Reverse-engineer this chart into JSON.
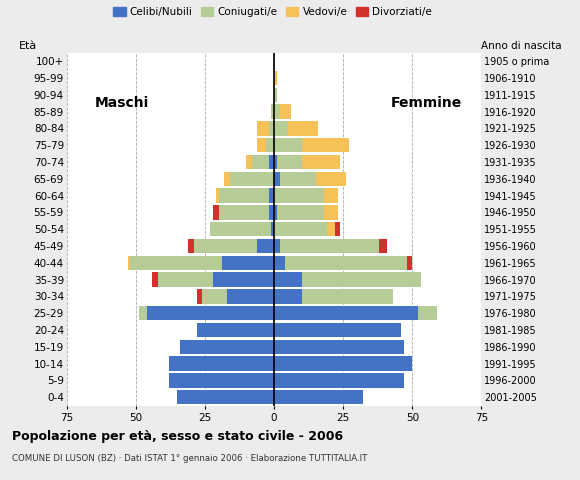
{
  "age_groups": [
    "0-4",
    "5-9",
    "10-14",
    "15-19",
    "20-24",
    "25-29",
    "30-34",
    "35-39",
    "40-44",
    "45-49",
    "50-54",
    "55-59",
    "60-64",
    "65-69",
    "70-74",
    "75-79",
    "80-84",
    "85-89",
    "90-94",
    "95-99",
    "100+"
  ],
  "birth_years": [
    "2001-2005",
    "1996-2000",
    "1991-1995",
    "1986-1990",
    "1981-1985",
    "1976-1980",
    "1971-1975",
    "1966-1970",
    "1961-1965",
    "1956-1960",
    "1951-1955",
    "1946-1950",
    "1941-1945",
    "1936-1940",
    "1931-1935",
    "1926-1930",
    "1921-1925",
    "1916-1920",
    "1911-1915",
    "1906-1910",
    "1905 o prima"
  ],
  "males": {
    "celibi": [
      35,
      38,
      38,
      34,
      28,
      46,
      17,
      22,
      19,
      6,
      1,
      2,
      2,
      0,
      2,
      0,
      0,
      0,
      0,
      0,
      0
    ],
    "coniugati": [
      0,
      0,
      0,
      0,
      0,
      3,
      9,
      20,
      33,
      23,
      22,
      18,
      18,
      16,
      6,
      3,
      2,
      1,
      0,
      0,
      0
    ],
    "vedovi": [
      0,
      0,
      0,
      0,
      0,
      0,
      0,
      0,
      1,
      0,
      0,
      0,
      1,
      2,
      2,
      3,
      4,
      0,
      0,
      0,
      0
    ],
    "divorziati": [
      0,
      0,
      0,
      0,
      0,
      0,
      2,
      2,
      0,
      2,
      0,
      2,
      0,
      0,
      0,
      0,
      0,
      0,
      0,
      0,
      0
    ]
  },
  "females": {
    "nubili": [
      32,
      47,
      50,
      47,
      46,
      52,
      10,
      10,
      4,
      2,
      0,
      1,
      0,
      2,
      1,
      0,
      0,
      0,
      0,
      0,
      0
    ],
    "coniugate": [
      0,
      0,
      0,
      0,
      0,
      7,
      33,
      43,
      44,
      36,
      19,
      17,
      18,
      13,
      9,
      10,
      5,
      2,
      1,
      0,
      0
    ],
    "vedove": [
      0,
      0,
      0,
      0,
      0,
      0,
      0,
      0,
      0,
      0,
      3,
      5,
      5,
      11,
      14,
      17,
      11,
      4,
      0,
      1,
      0
    ],
    "divorziate": [
      0,
      0,
      0,
      0,
      0,
      0,
      0,
      0,
      2,
      3,
      2,
      0,
      0,
      0,
      0,
      0,
      0,
      0,
      0,
      0,
      0
    ]
  },
  "colors": {
    "celibi": "#4472c4",
    "coniugati": "#b5cc96",
    "vedovi": "#f5c158",
    "divorziati": "#d0312d"
  },
  "xlim": 75,
  "title": "Popolazione per età, sesso e stato civile - 2006",
  "subtitle": "COMUNE DI LUSON (BZ) · Dati ISTAT 1° gennaio 2006 · Elaborazione TUTTITALIA.IT",
  "legend_labels": [
    "Celibi/Nubili",
    "Coniugati/e",
    "Vedovi/e",
    "Divorziati/e"
  ],
  "bg_color": "#ececec",
  "plot_bg": "#ffffff",
  "grid_color": "#aaaaaa"
}
